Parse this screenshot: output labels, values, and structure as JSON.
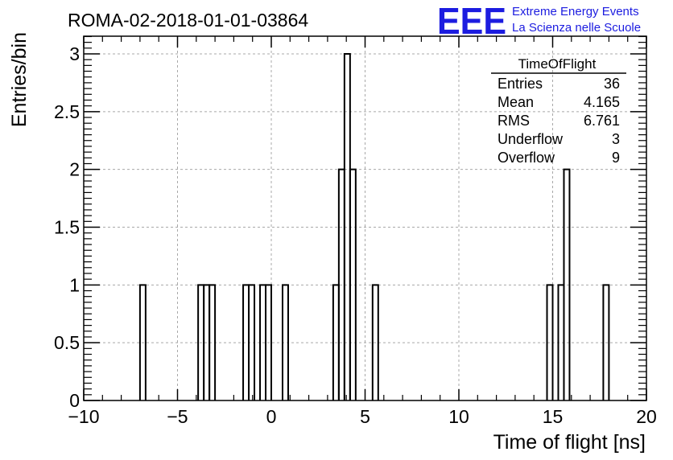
{
  "chart_data": {
    "type": "histogram",
    "title": "ROMA-02-2018-01-01-03864",
    "xlabel": "Time of flight [ns]",
    "ylabel": "Entries/bin",
    "xlim": [
      -10,
      20
    ],
    "ylim": [
      0,
      3.2
    ],
    "grid": true,
    "bin_width": 0.3,
    "x_ticks": [
      -10,
      -5,
      0,
      5,
      10,
      15,
      20
    ],
    "x_tick_labels": [
      "−10",
      "−5",
      "0",
      "5",
      "10",
      "15",
      "20"
    ],
    "y_ticks": [
      0,
      0.5,
      1,
      1.5,
      2,
      2.5,
      3
    ],
    "y_tick_labels": [
      "0",
      "0.5",
      "1",
      "1.5",
      "2",
      "2.5",
      "3"
    ],
    "bins": [
      {
        "x0": -7.0,
        "x1": -6.7,
        "count": 1
      },
      {
        "x0": -3.9,
        "x1": -3.6,
        "count": 1
      },
      {
        "x0": -3.6,
        "x1": -3.3,
        "count": 1
      },
      {
        "x0": -3.3,
        "x1": -3.0,
        "count": 1
      },
      {
        "x0": -1.5,
        "x1": -1.2,
        "count": 1
      },
      {
        "x0": -1.2,
        "x1": -0.9,
        "count": 1
      },
      {
        "x0": -0.6,
        "x1": -0.3,
        "count": 1
      },
      {
        "x0": -0.3,
        "x1": 0.0,
        "count": 1
      },
      {
        "x0": 0.6,
        "x1": 0.9,
        "count": 1
      },
      {
        "x0": 3.3,
        "x1": 3.6,
        "count": 1
      },
      {
        "x0": 3.6,
        "x1": 3.9,
        "count": 2
      },
      {
        "x0": 3.9,
        "x1": 4.2,
        "count": 3
      },
      {
        "x0": 4.2,
        "x1": 4.5,
        "count": 2
      },
      {
        "x0": 5.4,
        "x1": 5.7,
        "count": 1
      },
      {
        "x0": 14.7,
        "x1": 15.0,
        "count": 1
      },
      {
        "x0": 15.3,
        "x1": 15.6,
        "count": 1
      },
      {
        "x0": 15.6,
        "x1": 15.9,
        "count": 2
      },
      {
        "x0": 17.7,
        "x1": 18.0,
        "count": 1
      }
    ],
    "stats_box": {
      "title": "TimeOfFlight",
      "rows": [
        {
          "label": "Entries",
          "value": "36"
        },
        {
          "label": "Mean",
          "value": "4.165"
        },
        {
          "label": "RMS",
          "value": "6.761"
        },
        {
          "label": "Underflow",
          "value": "3"
        },
        {
          "label": "Overflow",
          "value": "9"
        }
      ]
    },
    "logo": {
      "mark": "EEE",
      "line1": "Extreme Energy Events",
      "line2": "La Scienza nelle Scuole",
      "color": "#1c1ce0"
    },
    "colors": {
      "line": "#000000",
      "grid": "#a8a8a8"
    }
  }
}
